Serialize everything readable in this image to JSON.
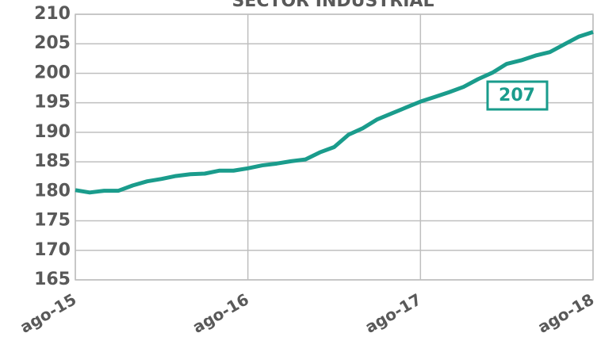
{
  "chart_data": {
    "type": "line",
    "title": "SECTOR INDUSTRIAL",
    "categories": [
      "ago-15",
      null,
      null,
      null,
      null,
      null,
      null,
      null,
      null,
      null,
      null,
      null,
      "ago-16",
      null,
      null,
      null,
      null,
      null,
      null,
      null,
      null,
      null,
      null,
      null,
      "ago-17",
      null,
      null,
      null,
      null,
      null,
      null,
      null,
      null,
      null,
      null,
      null,
      "ago-18"
    ],
    "series": [
      {
        "name": "Sector industrial",
        "color": "#1a9c8c",
        "values": [
          180.2,
          179.8,
          180.1,
          180.1,
          181,
          181.7,
          182.1,
          182.6,
          182.9,
          183,
          183.5,
          183.5,
          183.9,
          184.4,
          184.7,
          185.1,
          185.4,
          186.6,
          187.5,
          189.6,
          190.7,
          192.2,
          193.2,
          194.2,
          195.2,
          196,
          196.8,
          197.7,
          199,
          200.1,
          201.6,
          202.2,
          203,
          203.6,
          204.9,
          206.2,
          207
        ]
      }
    ],
    "ylim": [
      165,
      210
    ],
    "yticks": [
      165,
      170,
      175,
      180,
      185,
      190,
      195,
      200,
      205,
      210
    ],
    "grid": true
  }
}
